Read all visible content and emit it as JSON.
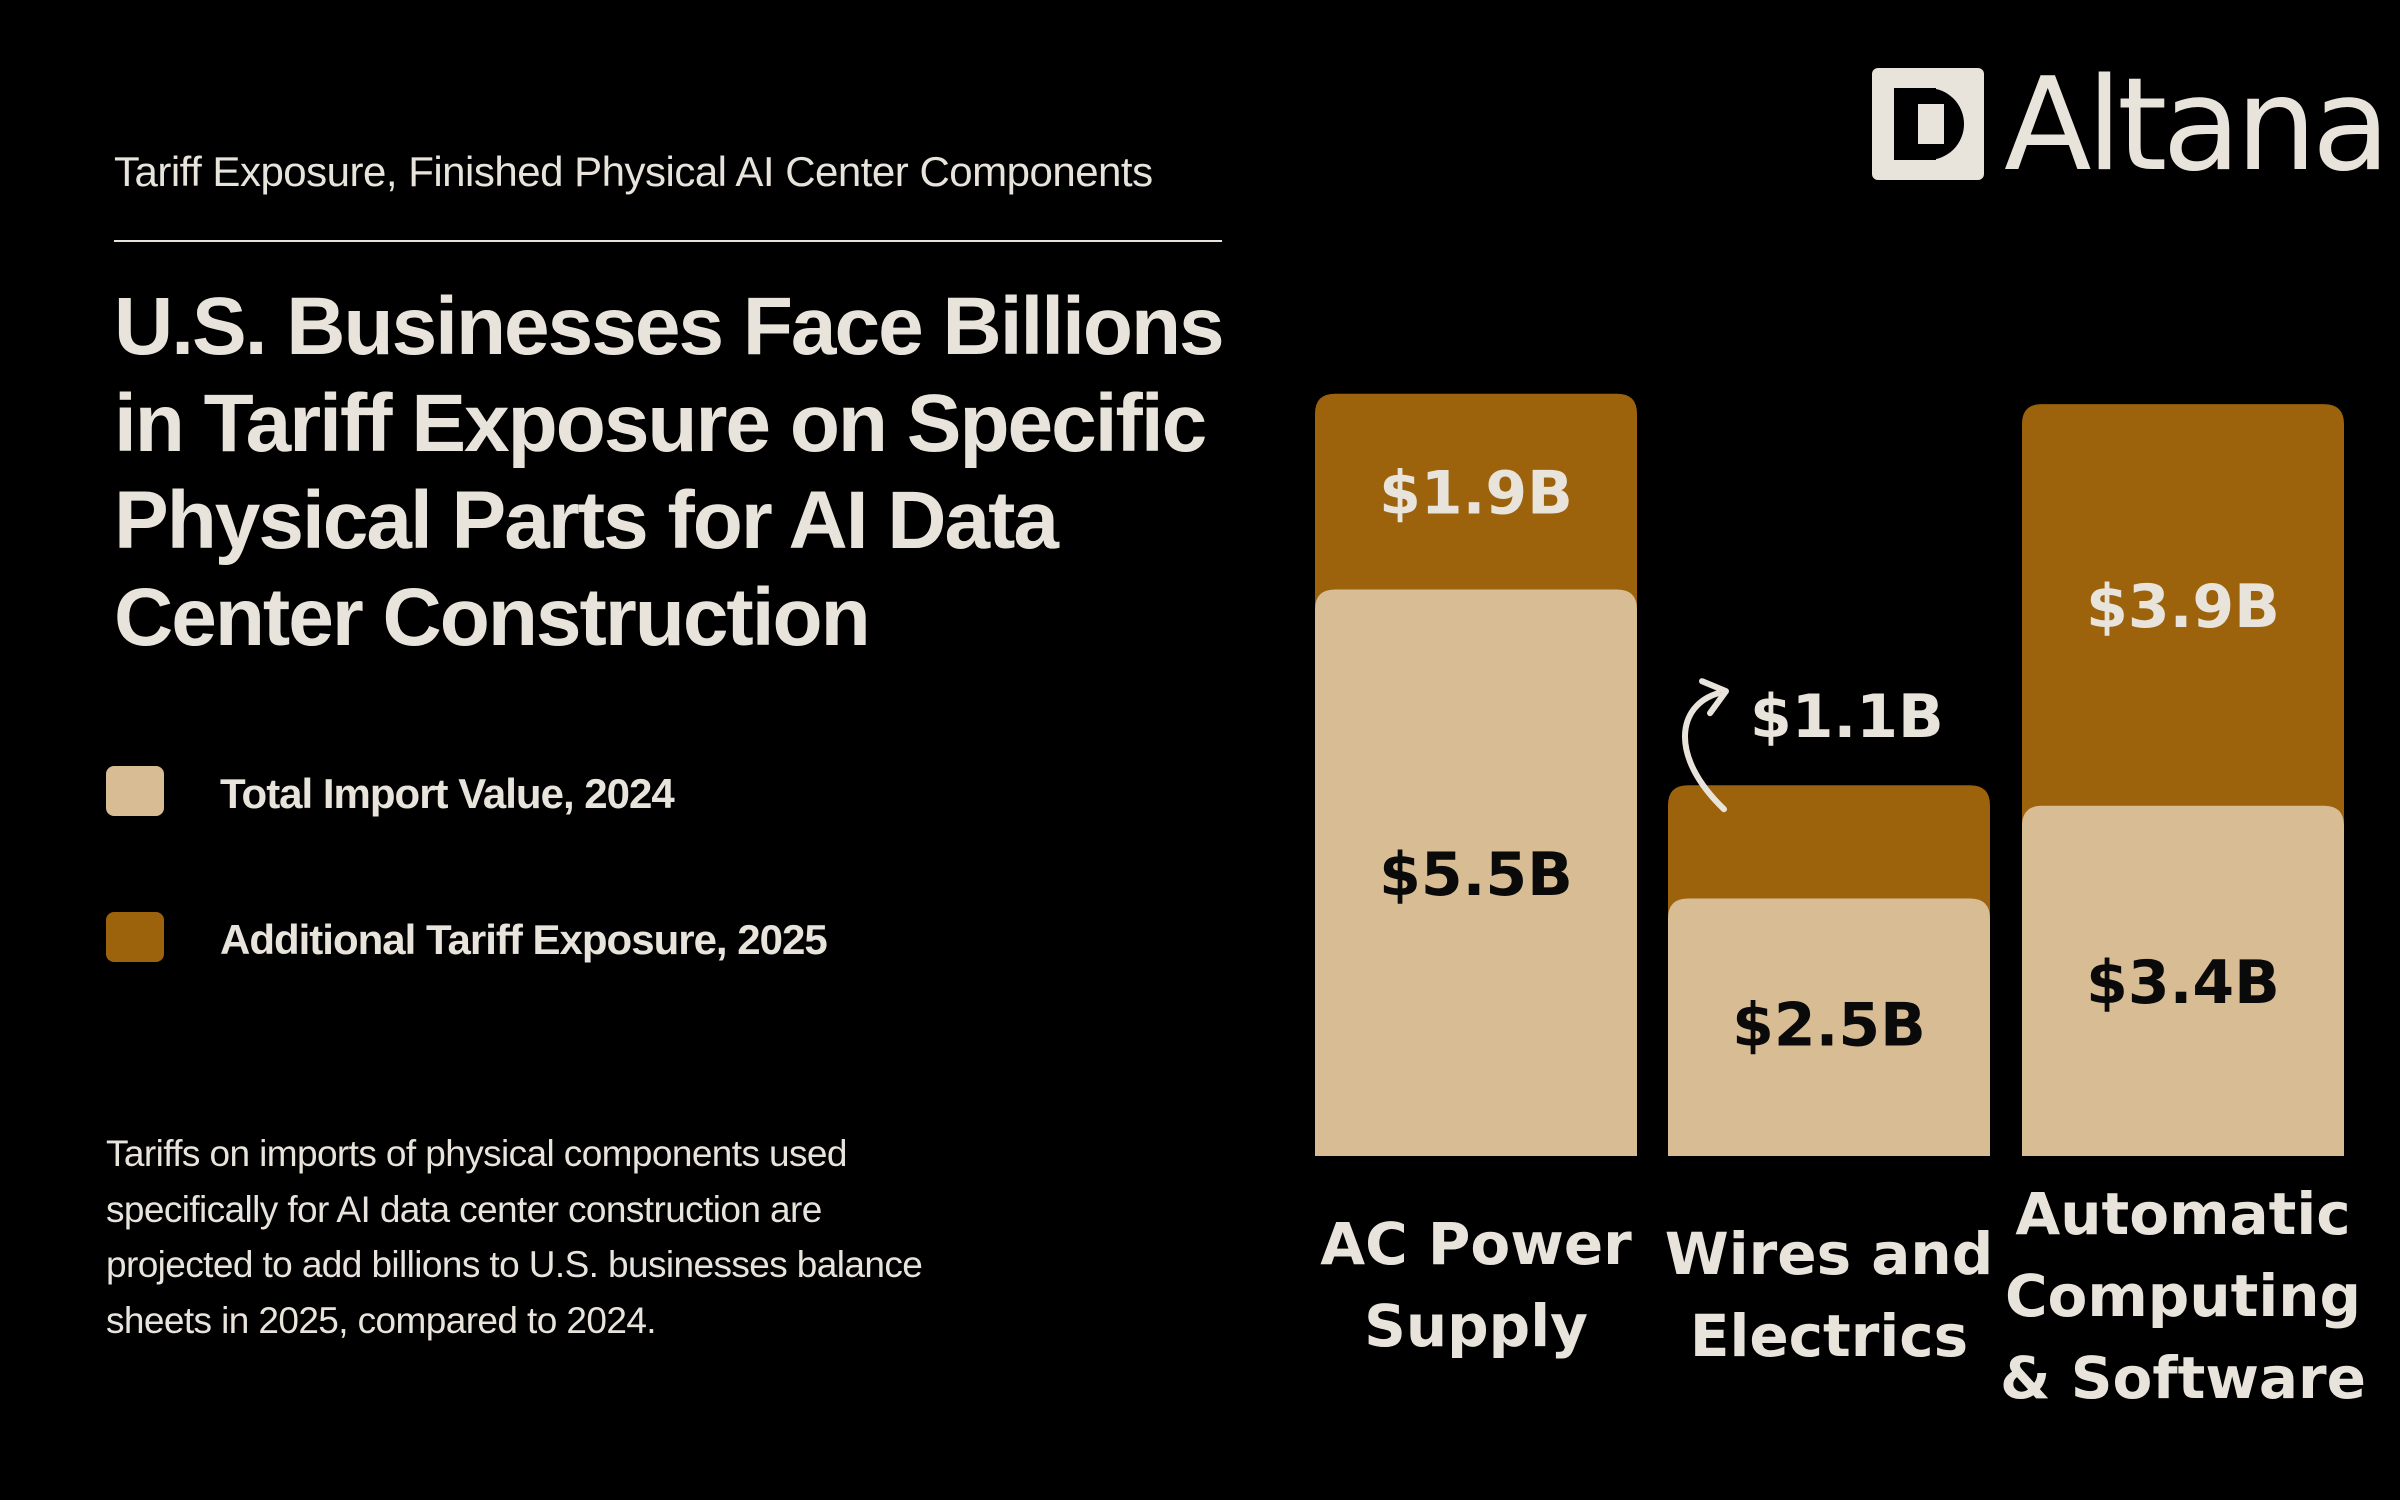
{
  "header": {
    "subtitle": "Tariff Exposure, Finished Physical AI Center Components",
    "title": "U.S. Businesses Face Billions in Tariff Exposure on Specific Physical Parts for AI Data Center Construction"
  },
  "legend": [
    {
      "label": "Total Import Value, 2024",
      "color": "#d7bc94"
    },
    {
      "label": "Additional Tariff Exposure, 2025",
      "color": "#9c620c"
    }
  ],
  "description": "Tariffs on imports of physical components used specifically for AI data center construction are projected to add billions to U.S. businesses balance sheets in 2025, compared to 2024.",
  "logo": {
    "text": "Altana",
    "icon": "altana-logo-icon"
  },
  "colors": {
    "background": "#000000",
    "import": "#d7bc94",
    "tariff": "#9c620c",
    "text_light": "#e8e4dc",
    "text_dark": "#0a0a0a"
  },
  "chart_data": {
    "type": "bar",
    "stacked": true,
    "categories": [
      [
        "AC Power",
        "Supply"
      ],
      [
        "Wires and",
        "Electrics"
      ],
      [
        "Automatic",
        "Computing",
        "& Software"
      ]
    ],
    "series": [
      {
        "name": "Total Import Value, 2024",
        "values": [
          5.5,
          2.5,
          3.4
        ],
        "labels": [
          "$5.5B",
          "$2.5B",
          "$3.4B"
        ]
      },
      {
        "name": "Additional Tariff Exposure, 2025",
        "values": [
          1.9,
          1.1,
          3.9
        ],
        "labels": [
          "$1.9B",
          "$1.1B",
          "$3.9B"
        ]
      }
    ],
    "unit": "$B",
    "title": "",
    "xlabel": "",
    "ylabel": ""
  }
}
